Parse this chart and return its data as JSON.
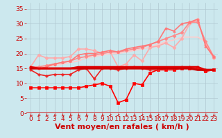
{
  "xlabel": "Vent moyen/en rafales ( km/h )",
  "xlim": [
    -0.5,
    23.5
  ],
  "ylim": [
    0,
    37
  ],
  "yticks": [
    0,
    5,
    10,
    15,
    20,
    25,
    30,
    35
  ],
  "xticks": [
    0,
    1,
    2,
    3,
    4,
    5,
    6,
    7,
    8,
    9,
    10,
    11,
    12,
    13,
    14,
    15,
    16,
    17,
    18,
    19,
    20,
    21,
    22,
    23
  ],
  "bg_color": "#cce8ee",
  "grid_color": "#b0c8d0",
  "series": [
    {
      "y": [
        15.0,
        15.0,
        15.0,
        15.0,
        15.0,
        15.0,
        15.0,
        15.0,
        15.0,
        15.0,
        15.0,
        15.0,
        15.0,
        15.0,
        15.0,
        15.0,
        15.0,
        15.0,
        15.0,
        15.0,
        15.0,
        14.5,
        14.5,
        14.5
      ],
      "color": "#cc0000",
      "lw": 2.2,
      "marker": null,
      "ms": 0,
      "zorder": 5
    },
    {
      "y": [
        8.5,
        8.5,
        8.5,
        8.5,
        8.5,
        8.5,
        8.5,
        9.0,
        9.5,
        10.0,
        9.0,
        3.5,
        4.5,
        10.0,
        9.5,
        13.5,
        14.5,
        14.5,
        14.5,
        15.0,
        15.0,
        15.0,
        14.0,
        14.5
      ],
      "color": "#ff0000",
      "lw": 1.2,
      "marker": "s",
      "ms": 2.5,
      "zorder": 4
    },
    {
      "y": [
        14.5,
        13.0,
        12.5,
        13.0,
        13.0,
        13.0,
        14.5,
        15.0,
        11.5,
        15.0,
        15.0,
        14.5,
        15.0,
        15.5,
        15.0,
        14.5,
        14.5,
        15.0,
        15.0,
        15.5,
        15.5,
        15.5,
        14.5,
        14.5
      ],
      "color": "#ee2222",
      "lw": 1.2,
      "marker": "P",
      "ms": 2.5,
      "zorder": 4
    },
    {
      "y": [
        15.5,
        15.0,
        15.0,
        15.0,
        15.0,
        15.0,
        15.5,
        15.5,
        15.5,
        15.5,
        15.5,
        15.5,
        15.5,
        15.5,
        15.5,
        15.5,
        15.5,
        15.5,
        15.5,
        15.5,
        15.5,
        15.5,
        14.5,
        14.5
      ],
      "color": "#dd0000",
      "lw": 1.8,
      "marker": null,
      "ms": 0,
      "zorder": 5
    },
    {
      "y": [
        15.0,
        15.0,
        15.5,
        16.0,
        16.5,
        17.0,
        17.5,
        18.5,
        19.0,
        19.5,
        20.0,
        20.0,
        20.5,
        21.0,
        21.5,
        22.0,
        23.0,
        24.0,
        24.5,
        25.5,
        25.5,
        25.5,
        24.0,
        19.0
      ],
      "color": "#ffcccc",
      "lw": 1.2,
      "marker": null,
      "ms": 0,
      "zorder": 2
    },
    {
      "y": [
        15.5,
        19.5,
        18.5,
        18.5,
        18.5,
        19.0,
        21.5,
        21.5,
        21.0,
        20.0,
        20.5,
        15.5,
        16.5,
        19.5,
        17.5,
        22.0,
        22.5,
        23.5,
        22.0,
        25.0,
        30.0,
        31.5,
        23.0,
        18.5
      ],
      "color": "#ffaaaa",
      "lw": 1.2,
      "marker": "D",
      "ms": 2.5,
      "zorder": 3
    },
    {
      "y": [
        15.5,
        15.5,
        16.0,
        16.5,
        17.0,
        17.5,
        18.5,
        19.0,
        19.5,
        20.0,
        20.5,
        20.5,
        21.0,
        21.5,
        22.0,
        23.0,
        24.0,
        25.0,
        26.0,
        27.0,
        30.5,
        30.5,
        24.0,
        19.0
      ],
      "color": "#ff8888",
      "lw": 1.2,
      "marker": "D",
      "ms": 2.5,
      "zorder": 3
    },
    {
      "y": [
        15.5,
        15.0,
        15.5,
        16.5,
        17.0,
        17.5,
        19.5,
        20.0,
        20.0,
        20.5,
        21.0,
        20.5,
        21.5,
        22.0,
        22.5,
        23.0,
        24.0,
        28.5,
        27.5,
        30.0,
        30.5,
        31.5,
        22.5,
        19.0
      ],
      "color": "#ff7777",
      "lw": 1.2,
      "marker": "^",
      "ms": 2.5,
      "zorder": 3
    }
  ],
  "arrows": {
    "color": "#cc3333",
    "angles": [
      225,
      225,
      225,
      225,
      225,
      225,
      225,
      225,
      225,
      225,
      180,
      180,
      225,
      225,
      180,
      225,
      180,
      225,
      225,
      225,
      225,
      225,
      225,
      225
    ]
  },
  "xlabel_color": "#cc0000",
  "xlabel_fontsize": 8,
  "tick_color": "#cc0000",
  "tick_fontsize": 6.5
}
